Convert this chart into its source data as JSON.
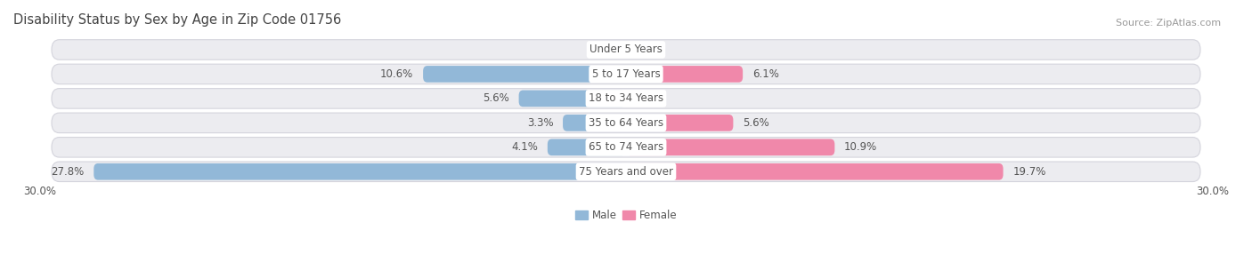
{
  "title": "Disability Status by Sex by Age in Zip Code 01756",
  "source": "Source: ZipAtlas.com",
  "categories": [
    "Under 5 Years",
    "5 to 17 Years",
    "18 to 34 Years",
    "35 to 64 Years",
    "65 to 74 Years",
    "75 Years and over"
  ],
  "male_values": [
    0.0,
    10.6,
    5.6,
    3.3,
    4.1,
    27.8
  ],
  "female_values": [
    0.0,
    6.1,
    0.0,
    5.6,
    10.9,
    19.7
  ],
  "male_color": "#92b8d8",
  "female_color": "#f088aa",
  "row_bg_color": "#e8e8ec",
  "row_border_color": "#d0d0d8",
  "xlim": 30.0,
  "legend_male": "Male",
  "legend_female": "Female",
  "title_fontsize": 10.5,
  "source_fontsize": 8,
  "label_fontsize": 8.5,
  "category_fontsize": 8.5,
  "axis_fontsize": 8.5,
  "value_color": "#555555",
  "category_color": "#555555",
  "title_color": "#444444"
}
